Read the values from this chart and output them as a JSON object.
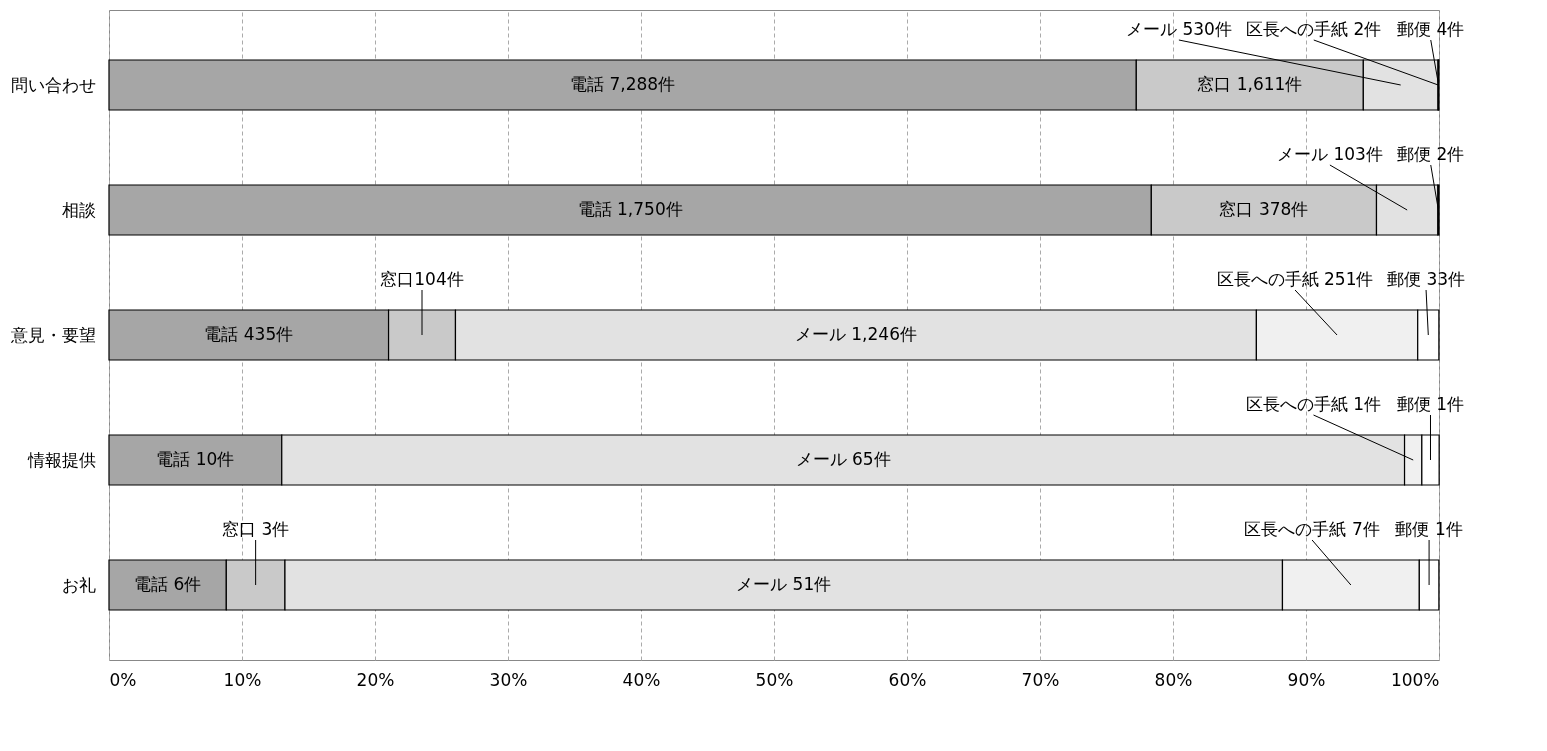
{
  "chart_data": {
    "type": "bar",
    "orientation": "horizontal",
    "stacked": true,
    "categories": [
      "問い合わせ",
      "相談",
      "意見・要望",
      "情報提供",
      "お礼"
    ],
    "series": [
      {
        "color": "#a6a6a6",
        "values": [
          77.24,
          78.37,
          21.02,
          12.99,
          8.82
        ],
        "value_labels": [
          "電話 7,288件",
          "電話 1,750件",
          "電話 435件",
          "電話 10件",
          "電話 6件"
        ]
      },
      {
        "color": "#c9c9c9",
        "values": [
          17.07,
          16.93,
          5.03,
          null,
          4.41
        ],
        "value_labels": [
          "窓口 1,611件",
          "窓口 378件",
          "窓口104件",
          null,
          "窓口 3件"
        ]
      },
      {
        "color": "#e2e2e2",
        "values": [
          5.62,
          4.61,
          60.22,
          84.42,
          75.0
        ],
        "value_labels": [
          "メール 530件",
          "メール 103件",
          "メール 1,246件",
          "メール 65件",
          "メール 51件"
        ]
      },
      {
        "color": "#f0f0f0",
        "values": [
          0.02,
          null,
          12.13,
          1.3,
          10.29
        ],
        "value_labels": [
          "区長への手紙 2件",
          null,
          "区長への手紙 251件",
          "区長への手紙 1件",
          "区長への手紙 7件"
        ]
      },
      {
        "color": "#ffffff",
        "values": [
          0.04,
          0.09,
          1.59,
          1.3,
          1.47
        ],
        "value_labels": [
          "郵便 4件",
          "郵便 2件",
          "郵便 33件",
          "郵便 1件",
          "郵便 1件"
        ]
      }
    ],
    "xlim": [
      0,
      100
    ],
    "xticks": [
      {
        "value": 0,
        "label": "0%"
      },
      {
        "value": 10,
        "label": "10%"
      },
      {
        "value": 20,
        "label": "20%"
      },
      {
        "value": 30,
        "label": "30%"
      },
      {
        "value": 40,
        "label": "40%"
      },
      {
        "value": 50,
        "label": "50%"
      },
      {
        "value": 60,
        "label": "60%"
      },
      {
        "value": 70,
        "label": "70%"
      },
      {
        "value": 80,
        "label": "80%"
      },
      {
        "value": 90,
        "label": "90%"
      },
      {
        "value": 100,
        "label": "100%"
      }
    ],
    "grid": "x"
  }
}
